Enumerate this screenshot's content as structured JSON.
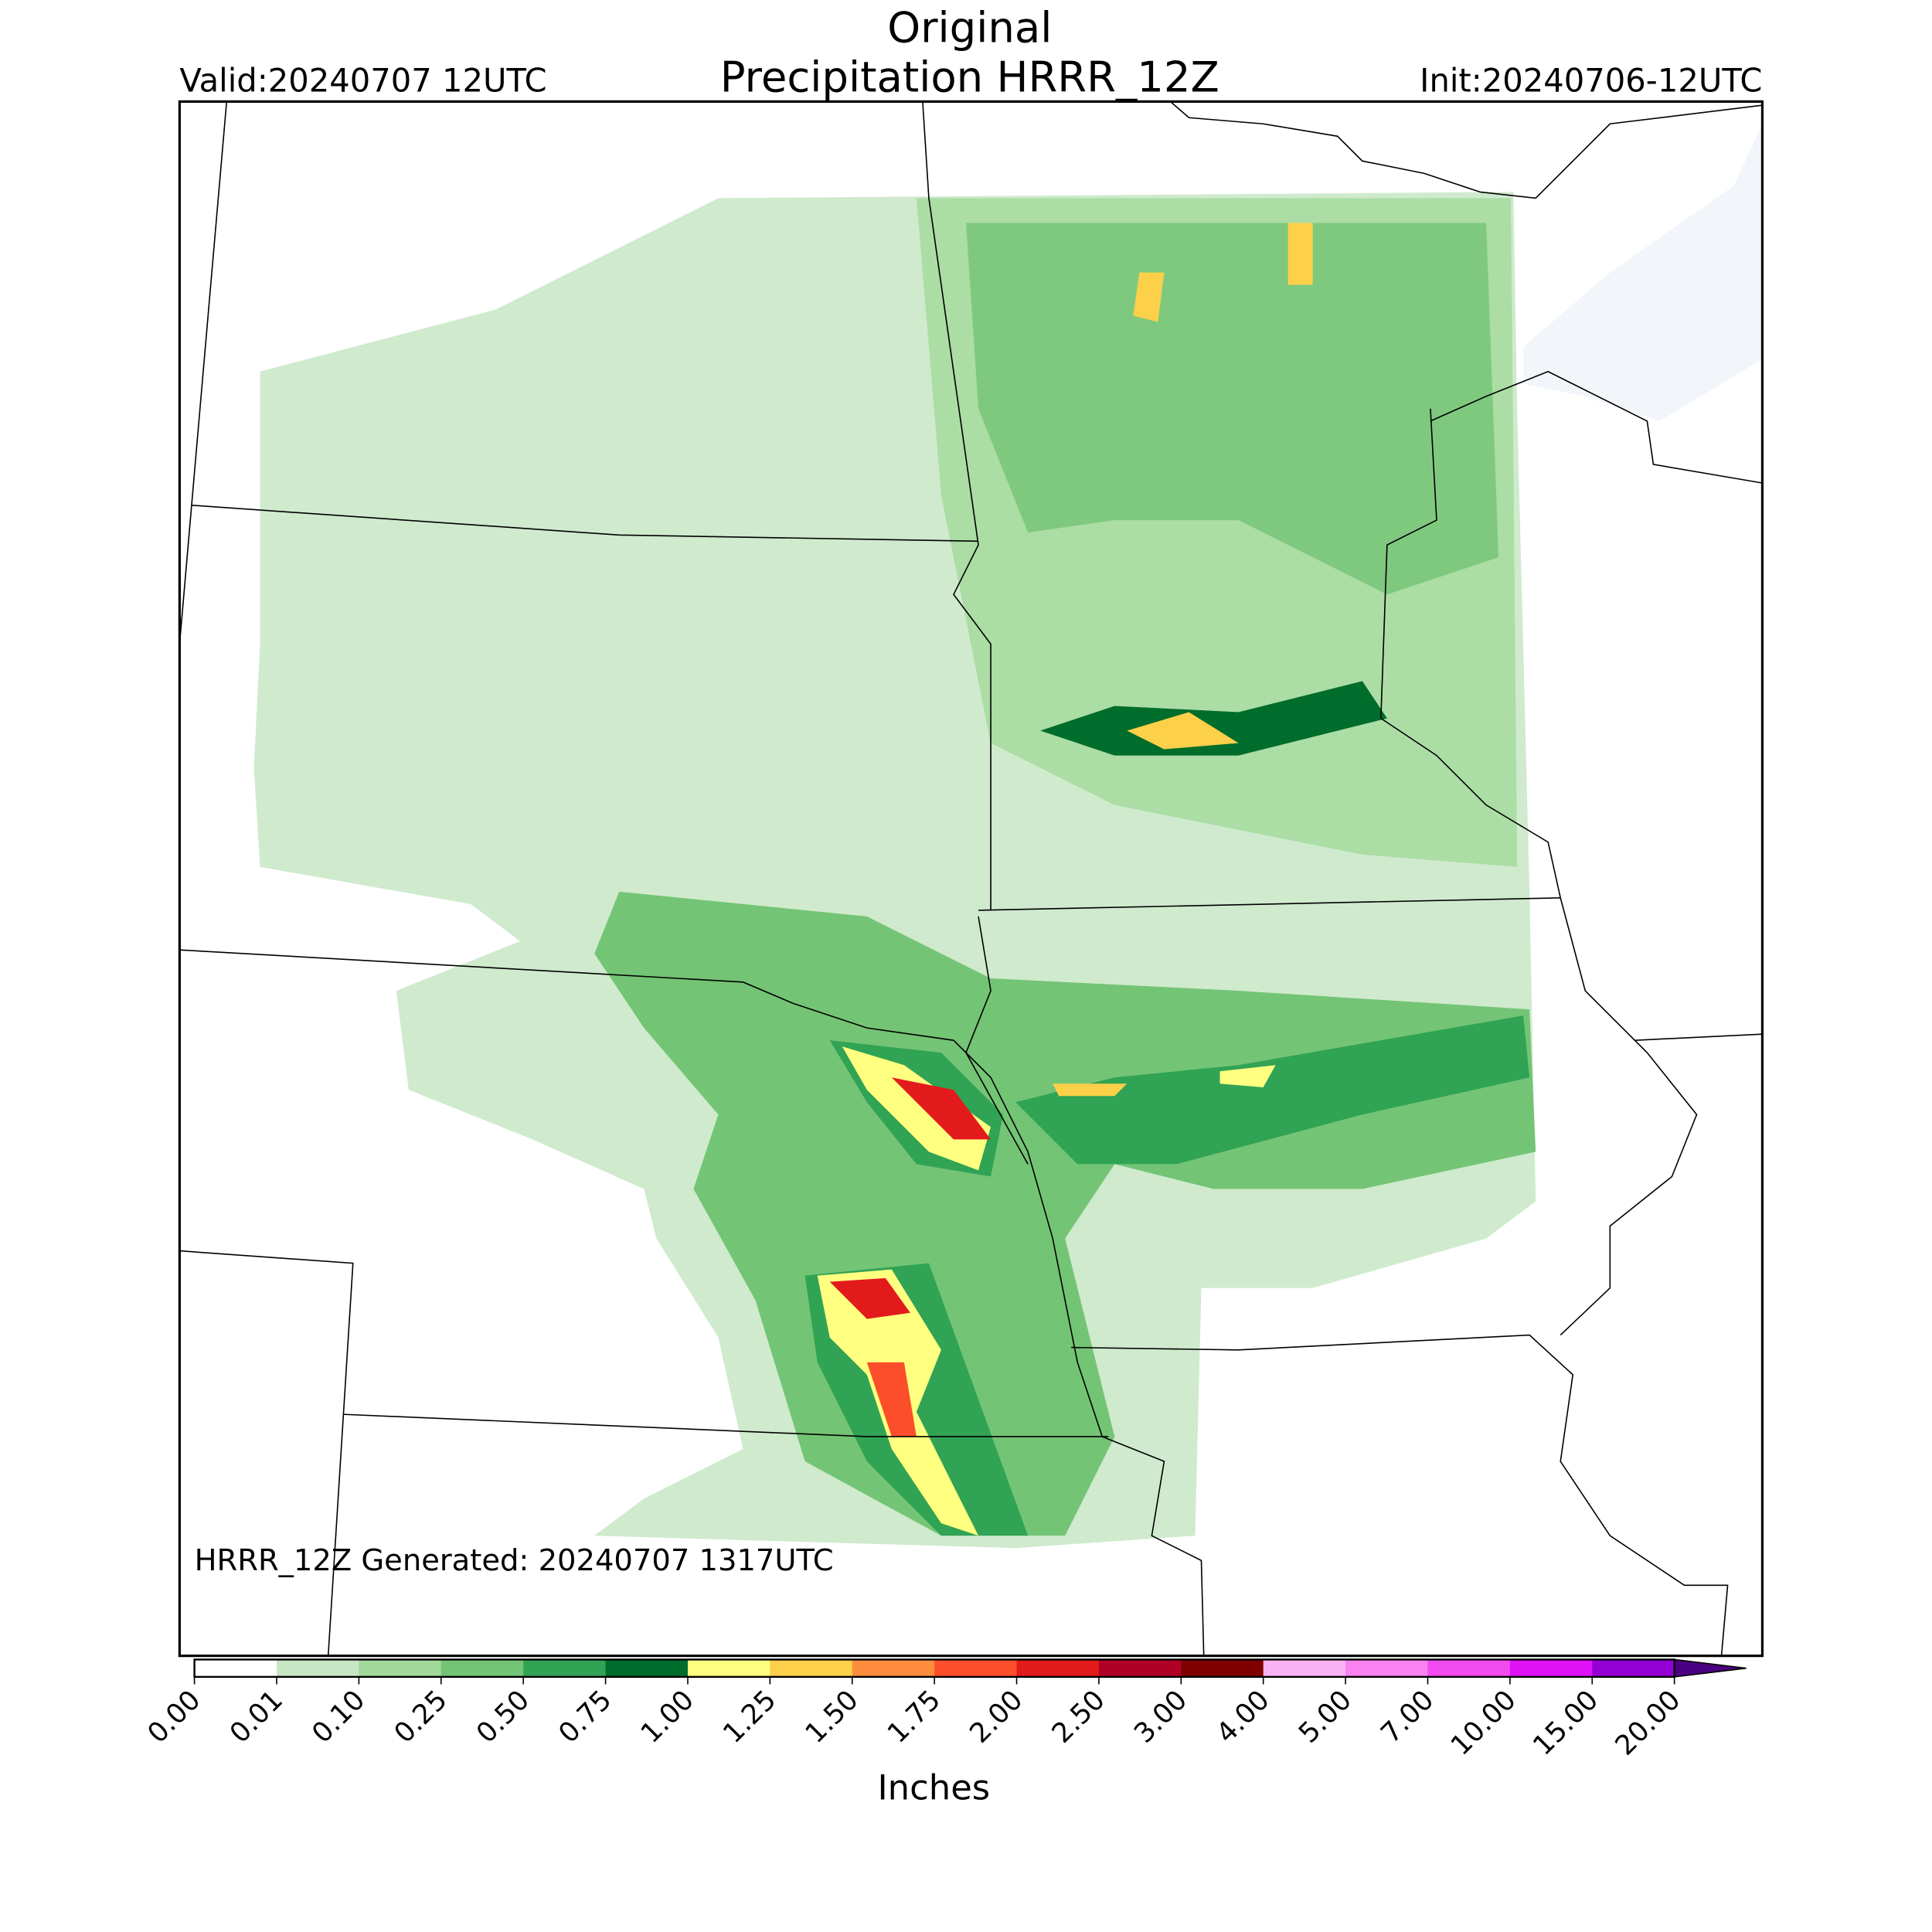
{
  "header": {
    "title": "Original",
    "subtitle": "Precipitation HRRR_12Z",
    "valid": "Valid:20240707 12UTC",
    "init": "Init:20240706-12UTC"
  },
  "map": {
    "annotation": "HRRR_12Z Generated: 20240707 1317UTC"
  },
  "colorbar": {
    "label": "Inches",
    "ticks": [
      {
        "value": 0,
        "label": "0.00"
      },
      {
        "value": 0.01,
        "label": "0.01"
      },
      {
        "value": 0.1,
        "label": "0.10"
      },
      {
        "value": 0.25,
        "label": "0.25"
      },
      {
        "value": 0.5,
        "label": "0.50"
      },
      {
        "value": 0.75,
        "label": "0.75"
      },
      {
        "value": 1,
        "label": "1.00"
      },
      {
        "value": 1.25,
        "label": "1.25"
      },
      {
        "value": 1.5,
        "label": "1.50"
      },
      {
        "value": 1.75,
        "label": "1.75"
      },
      {
        "value": 2,
        "label": "2.00"
      },
      {
        "value": 2.5,
        "label": "2.50"
      },
      {
        "value": 3,
        "label": "3.00"
      },
      {
        "value": 4,
        "label": "4.00"
      },
      {
        "value": 5,
        "label": "5.00"
      },
      {
        "value": 7,
        "label": "7.00"
      },
      {
        "value": 10,
        "label": "10.00"
      },
      {
        "value": 15,
        "label": "15.00"
      },
      {
        "value": 20,
        "label": "20.00"
      }
    ],
    "colors": [
      "#ffffff",
      "#c7e6c4",
      "#a1d99b",
      "#74c476",
      "#31a354",
      "#006d2c",
      "#ffff80",
      "#fdd049",
      "#fd8d3c",
      "#fc4e2a",
      "#e31a1c",
      "#b10026",
      "#800000",
      "#f9b3f3",
      "#f782f0",
      "#f24bf0",
      "#e011f5",
      "#9400d3"
    ],
    "over_color": "#4b0082"
  }
}
